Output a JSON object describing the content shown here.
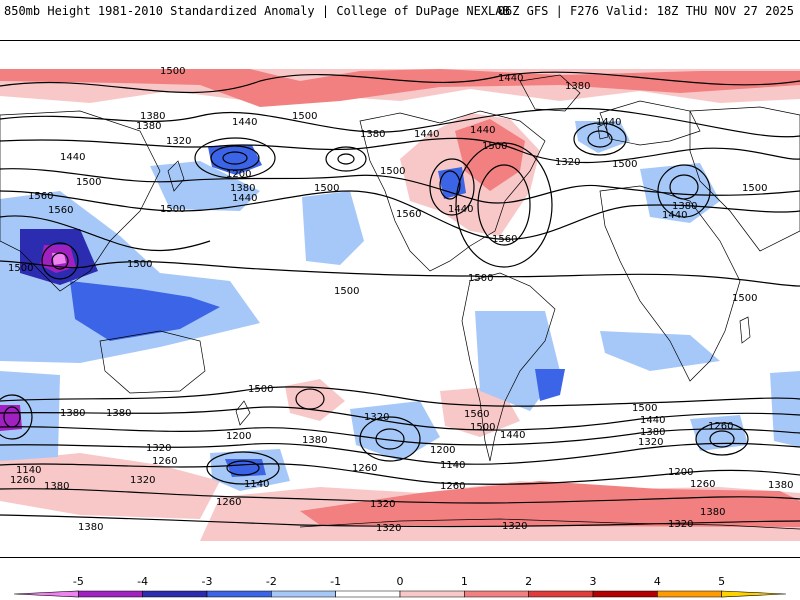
{
  "header": {
    "title_left": "850mb Height 1981-2010 Standardized Anomaly | College of DuPage NEXLAB",
    "title_right": "06Z GFS | F276 Valid: 18Z THU NOV 27 2025"
  },
  "map": {
    "contour_labels": [
      "1500",
      "1440",
      "1380",
      "1500",
      "1380",
      "1440",
      "1380",
      "1320",
      "1440",
      "1440",
      "1440",
      "1380",
      "1440",
      "1320",
      "1500",
      "1560",
      "1560",
      "1500",
      "1200",
      "1380",
      "1500",
      "1500",
      "1440",
      "1560",
      "1560",
      "1440",
      "1380",
      "1500",
      "1500",
      "1500",
      "1500",
      "1500",
      "1500",
      "1500",
      "1500",
      "1440",
      "1380",
      "1380",
      "1500",
      "1320",
      "1380",
      "1200",
      "1320",
      "1260",
      "1200",
      "1140",
      "1140",
      "1260",
      "1260",
      "1560",
      "1500",
      "1440",
      "1500",
      "1440",
      "1380",
      "1320",
      "1260",
      "1140",
      "1260",
      "1200",
      "1380",
      "1320",
      "1260",
      "1320",
      "1320",
      "1320",
      "1380",
      "1380",
      "1380",
      "1260",
      "1320"
    ]
  },
  "colorbar": {
    "ticks": [
      "-5",
      "-4",
      "-3",
      "-2",
      "-1",
      "0",
      "1",
      "2",
      "3",
      "4",
      "5"
    ],
    "colors": [
      "#ee82ee",
      "#a020c0",
      "#2c2cb0",
      "#3c64e6",
      "#a6c8f8",
      "#ffffff",
      "#f8c8c8",
      "#f28080",
      "#e03c3c",
      "#b40000",
      "#ff9a00",
      "#ffd200"
    ]
  }
}
